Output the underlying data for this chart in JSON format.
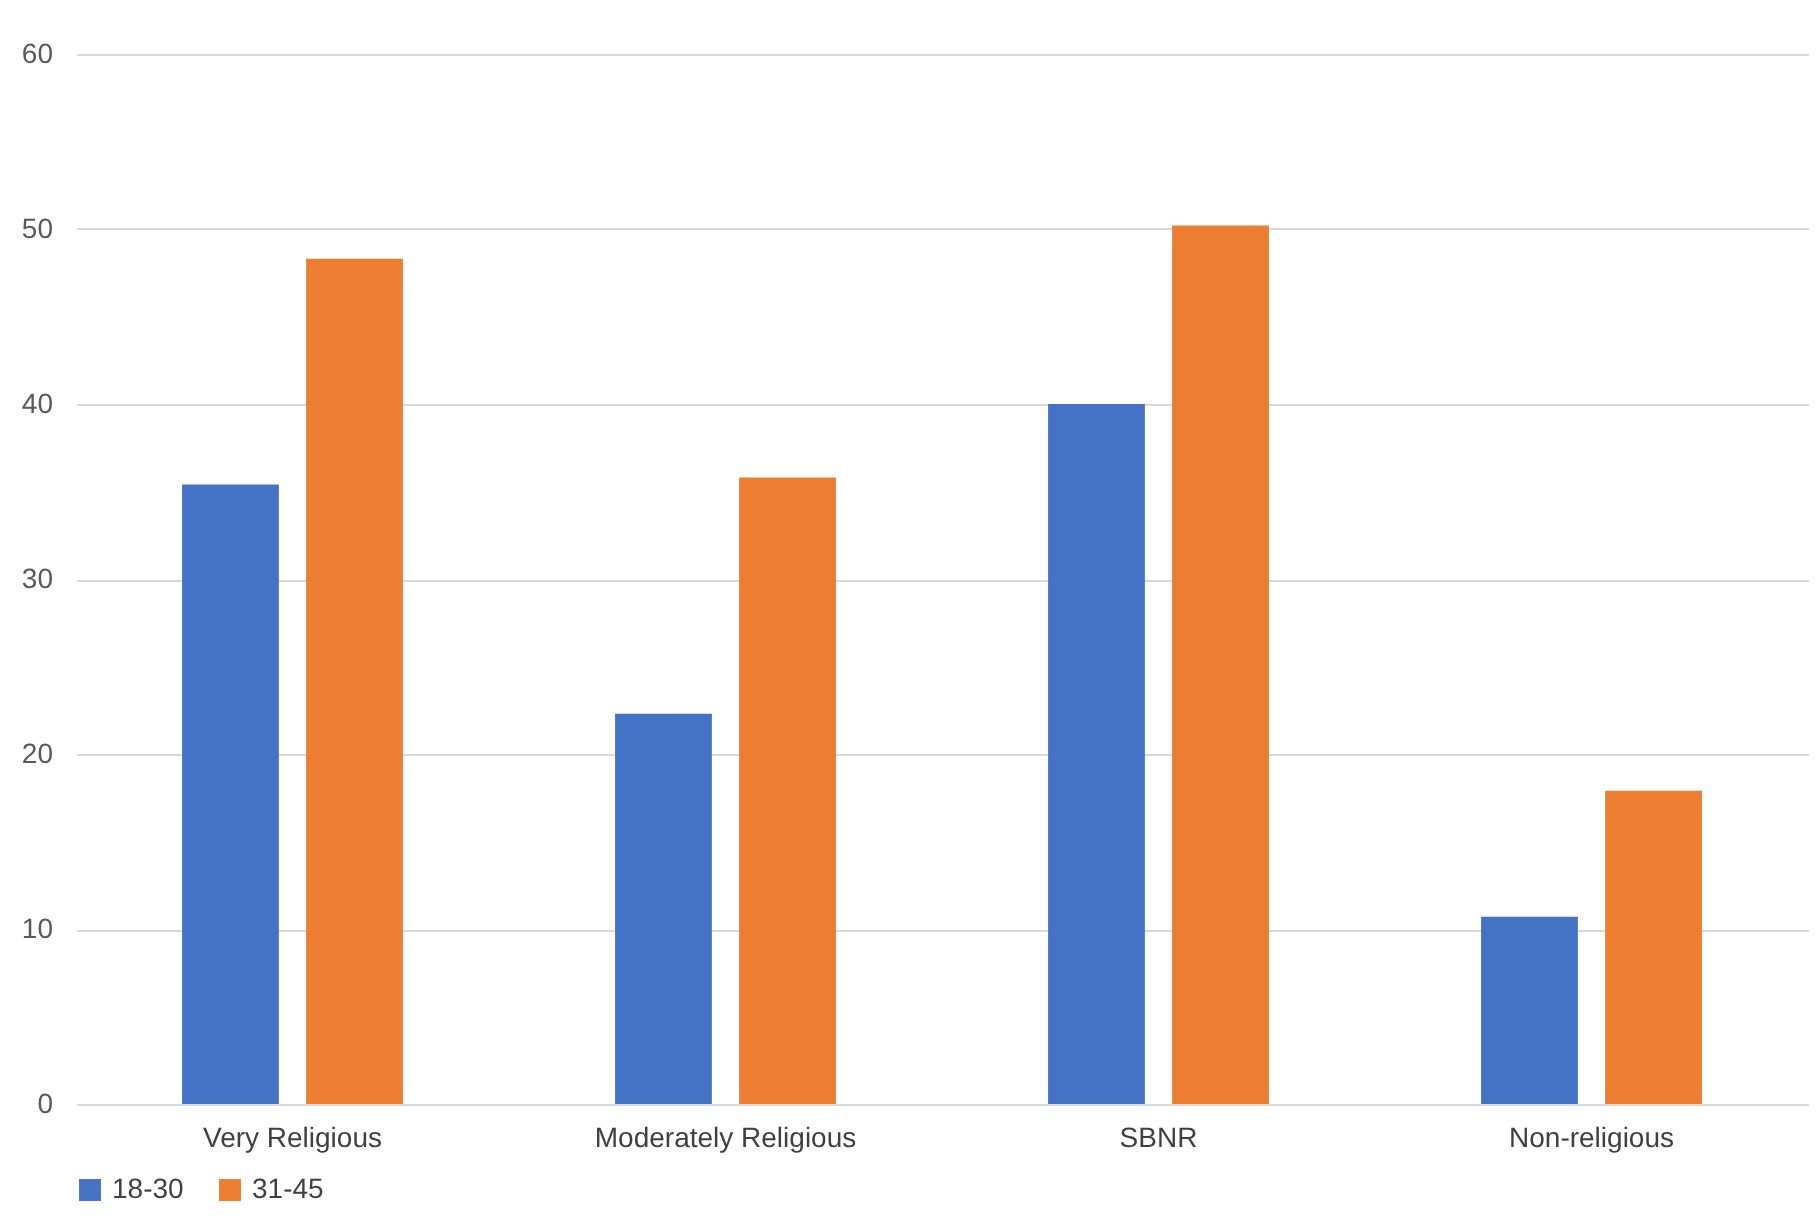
{
  "chart_data": {
    "type": "bar",
    "categories": [
      "Very Religious",
      "Moderately Religious",
      "SBNR",
      "Non-religious"
    ],
    "series": [
      {
        "name": "18-30",
        "color": "#4472c4",
        "values": [
          35.4,
          22.3,
          40.0,
          10.7
        ]
      },
      {
        "name": "31-45",
        "color": "#ed7d31",
        "values": [
          48.3,
          35.8,
          50.2,
          17.9
        ]
      }
    ],
    "ylim": [
      0,
      60
    ],
    "yticks": [
      0,
      10,
      20,
      30,
      40,
      50,
      60
    ],
    "grid": "y",
    "legend": "bottom"
  }
}
